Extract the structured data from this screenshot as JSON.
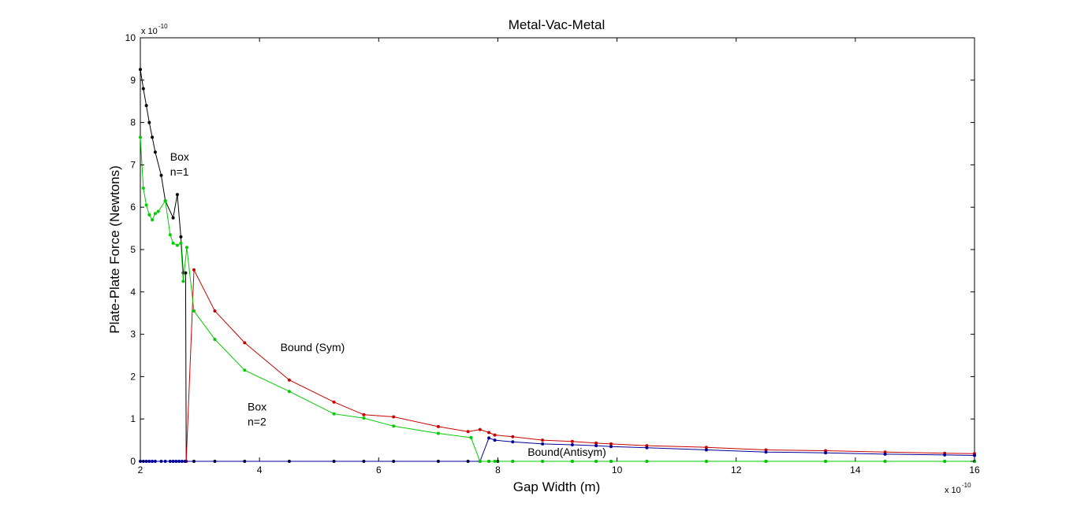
{
  "chart_data": {
    "type": "line",
    "title": "Metal-Vac-Metal",
    "xlabel": "Gap Width (m)",
    "ylabel": "Plate-Plate Force (Newtons)",
    "x_exponent": "x 10",
    "x_exponent_power": "-10",
    "y_exponent": "x 10",
    "y_exponent_power": "-10",
    "xlim": [
      2,
      16
    ],
    "ylim": [
      0,
      10
    ],
    "xticks": [
      2,
      4,
      6,
      8,
      10,
      12,
      14,
      16
    ],
    "yticks": [
      0,
      1,
      2,
      3,
      4,
      5,
      6,
      7,
      8,
      9,
      10
    ],
    "grid": false,
    "annotations": [
      {
        "text": "Box",
        "x": 2.5,
        "y": 7.1
      },
      {
        "text": "n=1",
        "x": 2.5,
        "y": 6.75
      },
      {
        "text": "Bound (Sym)",
        "x": 4.35,
        "y": 2.6
      },
      {
        "text": "Box",
        "x": 3.8,
        "y": 1.2
      },
      {
        "text": "n=2",
        "x": 3.8,
        "y": 0.85
      },
      {
        "text": "Bound(Antisym)",
        "x": 8.5,
        "y": 0.13
      }
    ],
    "series": [
      {
        "color": "#000000",
        "x": [
          2.0,
          2.05,
          2.1,
          2.15,
          2.2,
          2.25,
          2.35,
          2.42,
          2.55,
          2.62,
          2.68,
          2.72,
          2.76,
          2.77,
          2.9,
          3.25,
          3.75,
          4.5,
          5.25,
          5.75,
          6.25,
          7.0,
          7.5,
          7.7,
          7.85,
          8.0,
          8.25,
          8.75,
          9.25,
          9.65,
          9.9,
          10.5,
          11.5,
          12.5,
          13.5,
          14.5,
          15.5,
          16.0
        ],
        "y": [
          9.25,
          8.8,
          8.4,
          8.0,
          7.65,
          7.3,
          6.75,
          6.15,
          5.75,
          6.3,
          5.3,
          4.45,
          4.45,
          0.0,
          0.0,
          0.0,
          0.0,
          0.0,
          0.0,
          0.0,
          0.0,
          0.0,
          0.0,
          0.0,
          0.0,
          0.0,
          0.0,
          0.0,
          0.0,
          0.0,
          0.0,
          0.0,
          0.0,
          0.0,
          0.0,
          0.0,
          0.0,
          0.0
        ]
      },
      {
        "color": "#cc0000",
        "x": [
          2.77,
          2.9,
          3.25,
          3.75,
          4.5,
          5.25,
          5.75,
          6.25,
          7.0,
          7.5,
          7.7,
          7.85,
          7.95,
          8.25,
          8.75,
          9.25,
          9.65,
          9.9,
          10.5,
          11.5,
          12.5,
          13.5,
          14.5,
          15.5,
          16.0
        ],
        "y": [
          0.0,
          4.52,
          3.55,
          2.8,
          1.92,
          1.4,
          1.1,
          1.05,
          0.82,
          0.7,
          0.75,
          0.68,
          0.62,
          0.58,
          0.5,
          0.47,
          0.43,
          0.41,
          0.37,
          0.33,
          0.27,
          0.25,
          0.22,
          0.19,
          0.18
        ]
      },
      {
        "color": "#000099",
        "x": [
          2.0,
          2.05,
          2.1,
          2.15,
          2.2,
          2.25,
          2.35,
          2.42,
          2.5,
          2.55,
          2.6,
          2.65,
          2.7,
          2.75,
          7.7,
          7.85,
          7.95,
          8.25,
          8.75,
          9.25,
          9.65,
          9.9,
          10.5,
          11.5,
          12.5,
          13.5,
          14.5,
          15.5,
          16.0
        ],
        "y": [
          0.0,
          0.0,
          0.0,
          0.0,
          0.0,
          0.0,
          0.0,
          0.0,
          0.0,
          0.0,
          0.0,
          0.0,
          0.0,
          0.0,
          0.0,
          0.55,
          0.5,
          0.46,
          0.41,
          0.39,
          0.37,
          0.35,
          0.32,
          0.27,
          0.22,
          0.2,
          0.17,
          0.15,
          0.14
        ]
      },
      {
        "color": "#00cc00",
        "x": [
          2.0,
          2.05,
          2.1,
          2.15,
          2.2,
          2.25,
          2.3,
          2.42,
          2.5,
          2.55,
          2.62,
          2.68,
          2.72,
          2.78,
          2.9,
          3.25,
          3.75,
          4.5,
          5.25,
          5.75,
          6.25,
          7.0,
          7.55,
          7.7,
          7.85,
          7.95,
          8.25,
          8.75,
          9.25,
          9.65,
          9.9,
          10.5,
          11.5,
          12.5,
          13.5,
          14.5,
          15.5,
          16.0
        ],
        "y": [
          7.65,
          6.45,
          6.05,
          5.82,
          5.7,
          5.85,
          5.9,
          6.15,
          5.35,
          5.15,
          5.1,
          5.15,
          4.25,
          5.05,
          3.55,
          2.88,
          2.15,
          1.65,
          1.12,
          1.02,
          0.83,
          0.66,
          0.56,
          0.0,
          0.0,
          0.0,
          0.0,
          0.0,
          0.0,
          0.0,
          0.0,
          0.0,
          0.0,
          0.0,
          0.0,
          0.0,
          0.0,
          0.0
        ]
      }
    ]
  }
}
